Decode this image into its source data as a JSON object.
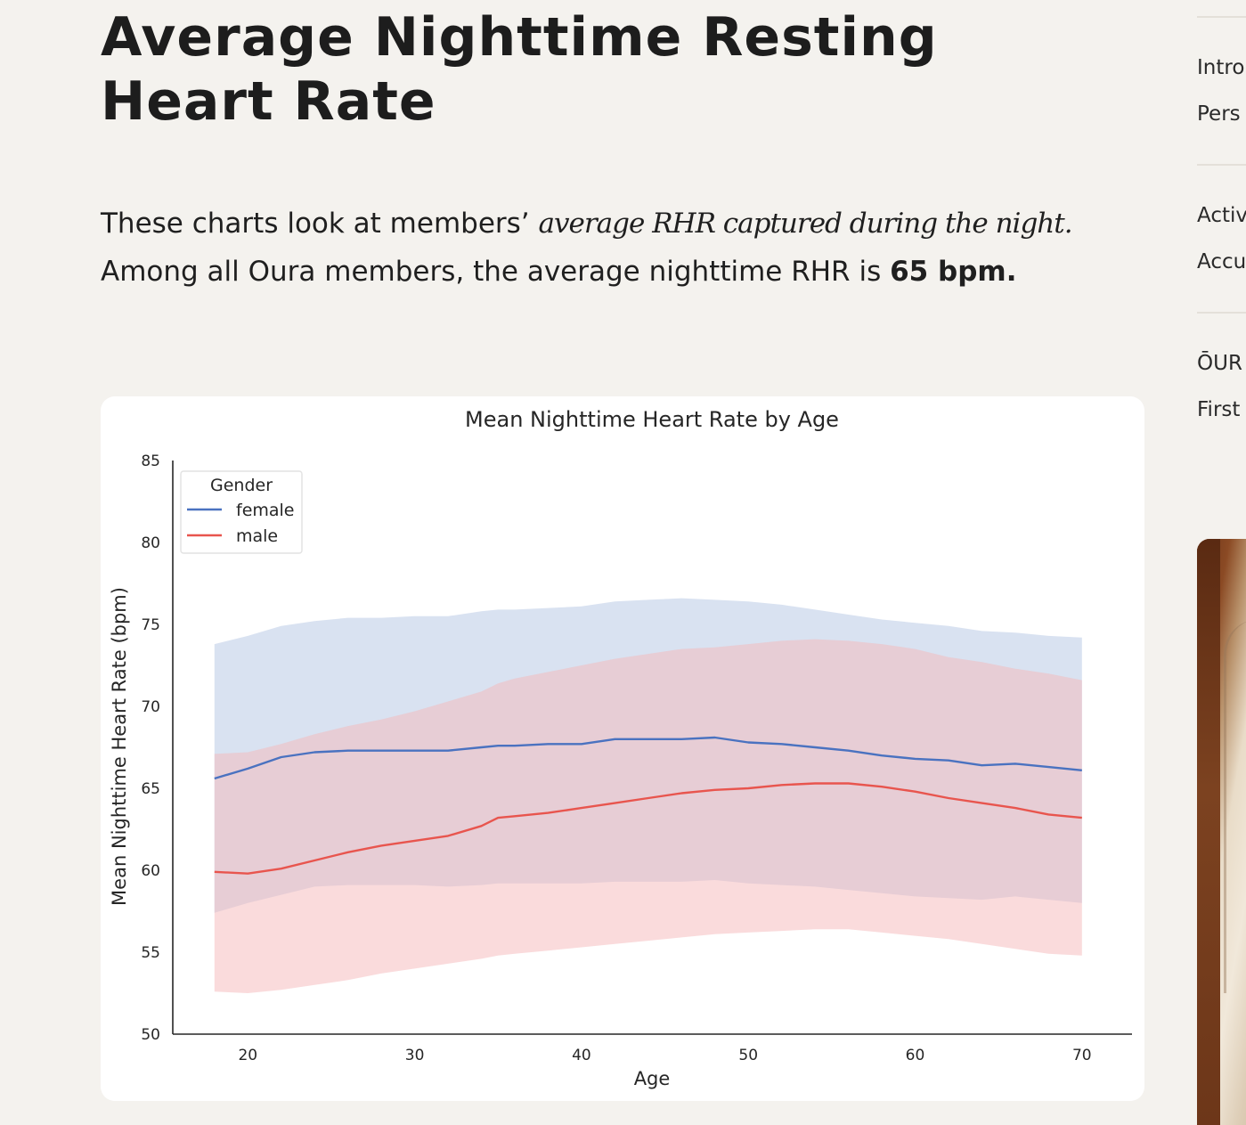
{
  "article": {
    "heading": "Average Nighttime Resting Heart Rate",
    "intro_part1": "These charts look at members’ ",
    "intro_emph": "average RHR captured during the night.",
    "intro_part2": " Among all Oura members, the average nighttime RHR is ",
    "intro_strong": "65 bpm."
  },
  "sidebar": {
    "links": [
      "Intro",
      "Pers",
      "Activ",
      "Accu",
      "ŌUR",
      "First"
    ]
  },
  "chart_data": {
    "type": "line",
    "title": "Mean Nighttime Heart Rate by Age",
    "xlabel": "Age",
    "ylabel": "Mean Nighttime Heart Rate (bpm)",
    "xlim": [
      15.5,
      73
    ],
    "ylim": [
      50,
      85
    ],
    "x_ticks": [
      20,
      30,
      40,
      50,
      60,
      70
    ],
    "y_ticks": [
      50,
      55,
      60,
      65,
      70,
      75,
      80,
      85
    ],
    "grid": false,
    "legend": {
      "title": "Gender",
      "placement": "top-left"
    },
    "x": [
      18,
      20,
      22,
      24,
      26,
      28,
      30,
      32,
      34,
      35,
      36,
      38,
      40,
      42,
      44,
      46,
      48,
      50,
      52,
      54,
      56,
      58,
      60,
      62,
      64,
      66,
      68,
      70
    ],
    "series": [
      {
        "name": "female",
        "color": "#4a72c0",
        "band_color": "#b3c6e3",
        "values": [
          65.6,
          66.2,
          66.9,
          67.2,
          67.3,
          67.3,
          67.3,
          67.3,
          67.5,
          67.6,
          67.6,
          67.7,
          67.7,
          68.0,
          68.0,
          68.0,
          68.1,
          67.8,
          67.7,
          67.5,
          67.3,
          67.0,
          66.8,
          66.7,
          66.4,
          66.5,
          66.3,
          66.1
        ],
        "upper": [
          73.8,
          74.3,
          74.9,
          75.2,
          75.4,
          75.4,
          75.5,
          75.5,
          75.8,
          75.9,
          75.9,
          76.0,
          76.1,
          76.4,
          76.5,
          76.6,
          76.5,
          76.4,
          76.2,
          75.9,
          75.6,
          75.3,
          75.1,
          74.9,
          74.6,
          74.5,
          74.3,
          74.2
        ],
        "lower": [
          57.4,
          58.0,
          58.5,
          59.0,
          59.1,
          59.1,
          59.1,
          59.0,
          59.1,
          59.2,
          59.2,
          59.2,
          59.2,
          59.3,
          59.3,
          59.3,
          59.4,
          59.2,
          59.1,
          59.0,
          58.8,
          58.6,
          58.4,
          58.3,
          58.2,
          58.4,
          58.2,
          58.0
        ]
      },
      {
        "name": "male",
        "color": "#e8554e",
        "band_color": "#f6b8b9",
        "values": [
          59.9,
          59.8,
          60.1,
          60.6,
          61.1,
          61.5,
          61.8,
          62.1,
          62.7,
          63.2,
          63.3,
          63.5,
          63.8,
          64.1,
          64.4,
          64.7,
          64.9,
          65.0,
          65.2,
          65.3,
          65.3,
          65.1,
          64.8,
          64.4,
          64.1,
          63.8,
          63.4,
          63.2
        ],
        "upper": [
          67.1,
          67.2,
          67.7,
          68.3,
          68.8,
          69.2,
          69.7,
          70.3,
          70.9,
          71.4,
          71.7,
          72.1,
          72.5,
          72.9,
          73.2,
          73.5,
          73.6,
          73.8,
          74.0,
          74.1,
          74.0,
          73.8,
          73.5,
          73.0,
          72.7,
          72.3,
          72.0,
          71.6
        ],
        "lower": [
          52.6,
          52.5,
          52.7,
          53.0,
          53.3,
          53.7,
          54.0,
          54.3,
          54.6,
          54.8,
          54.9,
          55.1,
          55.3,
          55.5,
          55.7,
          55.9,
          56.1,
          56.2,
          56.3,
          56.4,
          56.4,
          56.2,
          56.0,
          55.8,
          55.5,
          55.2,
          54.9,
          54.8
        ]
      }
    ]
  }
}
